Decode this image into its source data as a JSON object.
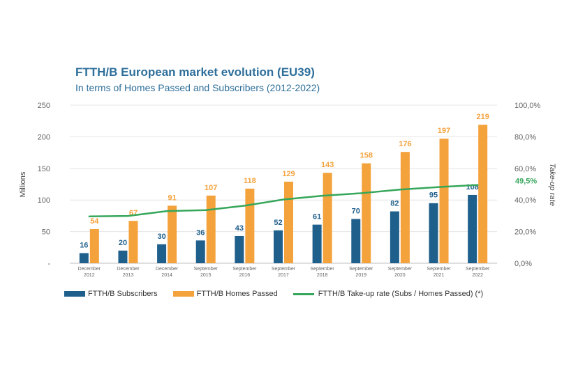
{
  "chart_data": {
    "type": "bar",
    "title": "FTTH/B European market evolution (EU39)",
    "subtitle": "In terms of Homes Passed and Subscribers (2012-2022)",
    "categories": [
      [
        "December",
        "2012"
      ],
      [
        "December",
        "2013"
      ],
      [
        "December",
        "2014"
      ],
      [
        "September",
        "2015"
      ],
      [
        "September",
        "2016"
      ],
      [
        "September",
        "2017"
      ],
      [
        "September",
        "2018"
      ],
      [
        "September",
        "2019"
      ],
      [
        "September",
        "2020"
      ],
      [
        "September",
        "2021"
      ],
      [
        "September",
        "2022"
      ]
    ],
    "series": [
      {
        "name": "FTTH/B Subscribers",
        "type": "bar",
        "axis": "left",
        "color": "#1f5f8b",
        "values": [
          16,
          20,
          30,
          36,
          43,
          52,
          61,
          70,
          82,
          95,
          108
        ]
      },
      {
        "name": "FTTH/B Homes Passed",
        "type": "bar",
        "axis": "left",
        "color": "#f4a23c",
        "values": [
          54,
          67,
          91,
          107,
          118,
          129,
          143,
          158,
          176,
          197,
          219
        ]
      },
      {
        "name": "FTTH/B Take-up rate (Subs / Homes Passed) (*)",
        "type": "line",
        "axis": "right",
        "color": "#35a65a",
        "values": [
          29.6,
          29.9,
          33.0,
          33.6,
          36.4,
          40.3,
          42.7,
          44.3,
          46.6,
          48.2,
          49.5
        ]
      }
    ],
    "bar_labels": {
      "subscribers": [
        "16",
        "20",
        "30",
        "36",
        "43",
        "52",
        "61",
        "70",
        "82",
        "95",
        "108"
      ],
      "homes_passed": [
        "54",
        "67",
        "91",
        "107",
        "118",
        "129",
        "143",
        "158",
        "176",
        "197",
        "219"
      ]
    },
    "line_end_label": "49,5%",
    "ylabel_left": "Millions",
    "ylabel_right": "Take-up rate",
    "ylim_left": [
      0,
      250
    ],
    "ylim_right": [
      0,
      100
    ],
    "yticks_left": [
      "-",
      "50",
      "100",
      "150",
      "200",
      "250"
    ],
    "yticks_right": [
      "0,0%",
      "20,0%",
      "40,0%",
      "60,0%",
      "80,0%",
      "100,0%"
    ],
    "grid": true,
    "legend_position": "bottom"
  }
}
